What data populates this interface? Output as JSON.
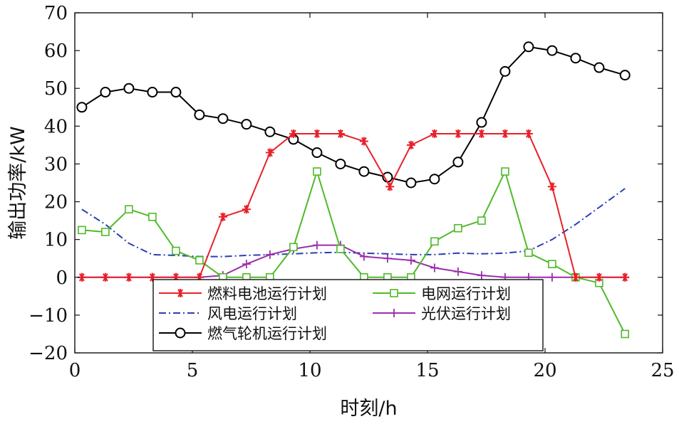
{
  "chart_data": {
    "type": "line",
    "xlabel": "时刻/h",
    "ylabel": "输出功率/kW",
    "xlim": [
      0,
      25
    ],
    "ylim": [
      -20,
      70
    ],
    "xticks": [
      "0",
      "5",
      "10",
      "15",
      "20",
      "25"
    ],
    "yticks": [
      "-20",
      "-10",
      "0",
      "10",
      "20",
      "30",
      "40",
      "50",
      "60",
      "70"
    ],
    "grid": false,
    "legend_position": "bottom-center",
    "series": [
      {
        "name": "燃料电池运行计划",
        "color": "#e8202a",
        "marker": "asterisk",
        "x": [
          0.3,
          1.3,
          2.3,
          3.3,
          4.3,
          5.3,
          6.3,
          7.3,
          8.3,
          9.3,
          10.3,
          11.3,
          12.3,
          13.4,
          14.3,
          15.3,
          16.3,
          17.3,
          18.3,
          19.3,
          20.3,
          21.3,
          22.3,
          23.4
        ],
        "y": [
          0,
          0,
          0,
          0,
          0,
          0,
          16,
          18,
          33,
          38,
          38,
          38,
          36,
          24,
          35,
          38,
          38,
          38,
          38,
          38,
          24,
          0,
          0,
          0
        ]
      },
      {
        "name": "电网运行计划",
        "color": "#4fba2a",
        "marker": "square",
        "x": [
          0.3,
          1.3,
          2.3,
          3.3,
          4.3,
          5.3,
          6.3,
          7.3,
          8.3,
          9.3,
          10.3,
          11.3,
          12.3,
          13.3,
          14.3,
          15.3,
          16.3,
          17.3,
          18.3,
          19.3,
          20.3,
          21.3,
          22.3,
          23.4
        ],
        "y": [
          12.5,
          12,
          18,
          16,
          7,
          4.5,
          0,
          0,
          0,
          8,
          28,
          7.5,
          0,
          0,
          0,
          9.5,
          13,
          15,
          28,
          6.5,
          3.5,
          0,
          -1.5,
          -15
        ]
      },
      {
        "name": "风电运行计划",
        "color": "#2a3fb2",
        "marker": "none",
        "dash": "dashdot",
        "x": [
          0.3,
          1.3,
          2.3,
          3.3,
          4.3,
          5.3,
          6.3,
          7.3,
          8.3,
          9.3,
          10.3,
          11.3,
          12.3,
          13.3,
          14.3,
          15.3,
          16.3,
          17.3,
          18.3,
          19.3,
          20.3,
          21.3,
          22.3,
          23.4
        ],
        "y": [
          18,
          14,
          9,
          6,
          5.8,
          5.5,
          5.5,
          5.8,
          6,
          6.2,
          6.5,
          6.6,
          6.4,
          6.2,
          6,
          6,
          6.4,
          6.2,
          6.4,
          7,
          10,
          14,
          18.5,
          23.5
        ]
      },
      {
        "name": "燃气轮机运行计划",
        "color": "#000000",
        "marker": "circle",
        "x": [
          0.3,
          1.3,
          2.3,
          3.3,
          4.3,
          5.3,
          6.3,
          7.3,
          8.3,
          9.3,
          10.3,
          11.3,
          12.3,
          13.3,
          14.3,
          15.3,
          16.3,
          17.3,
          18.3,
          19.3,
          20.3,
          21.3,
          22.3,
          23.4
        ],
        "y": [
          45,
          49,
          50,
          49,
          49,
          43,
          42,
          40.5,
          38.5,
          36.5,
          33,
          30,
          28,
          26.5,
          25,
          26,
          30.5,
          41,
          54.5,
          61,
          60,
          58,
          55.5,
          53.5
        ]
      },
      {
        "name": "光伏运行计划",
        "color": "#9b2fae",
        "marker": "plus",
        "x": [
          0.3,
          1.3,
          2.3,
          3.3,
          4.3,
          5.3,
          6.3,
          7.3,
          8.3,
          9.3,
          10.3,
          11.3,
          12.3,
          13.3,
          14.3,
          15.3,
          16.3,
          17.3,
          18.3,
          19.3,
          20.3,
          21.3,
          22.3,
          23.4
        ],
        "y": [
          0,
          0,
          0,
          0,
          0,
          0,
          0.5,
          3.5,
          6,
          7.5,
          8.5,
          8.5,
          5.5,
          5,
          4.5,
          2.5,
          1.5,
          0.5,
          0,
          0,
          0,
          0,
          0,
          0
        ]
      }
    ],
    "legend_order": [
      0,
      1,
      2,
      4,
      3
    ]
  }
}
